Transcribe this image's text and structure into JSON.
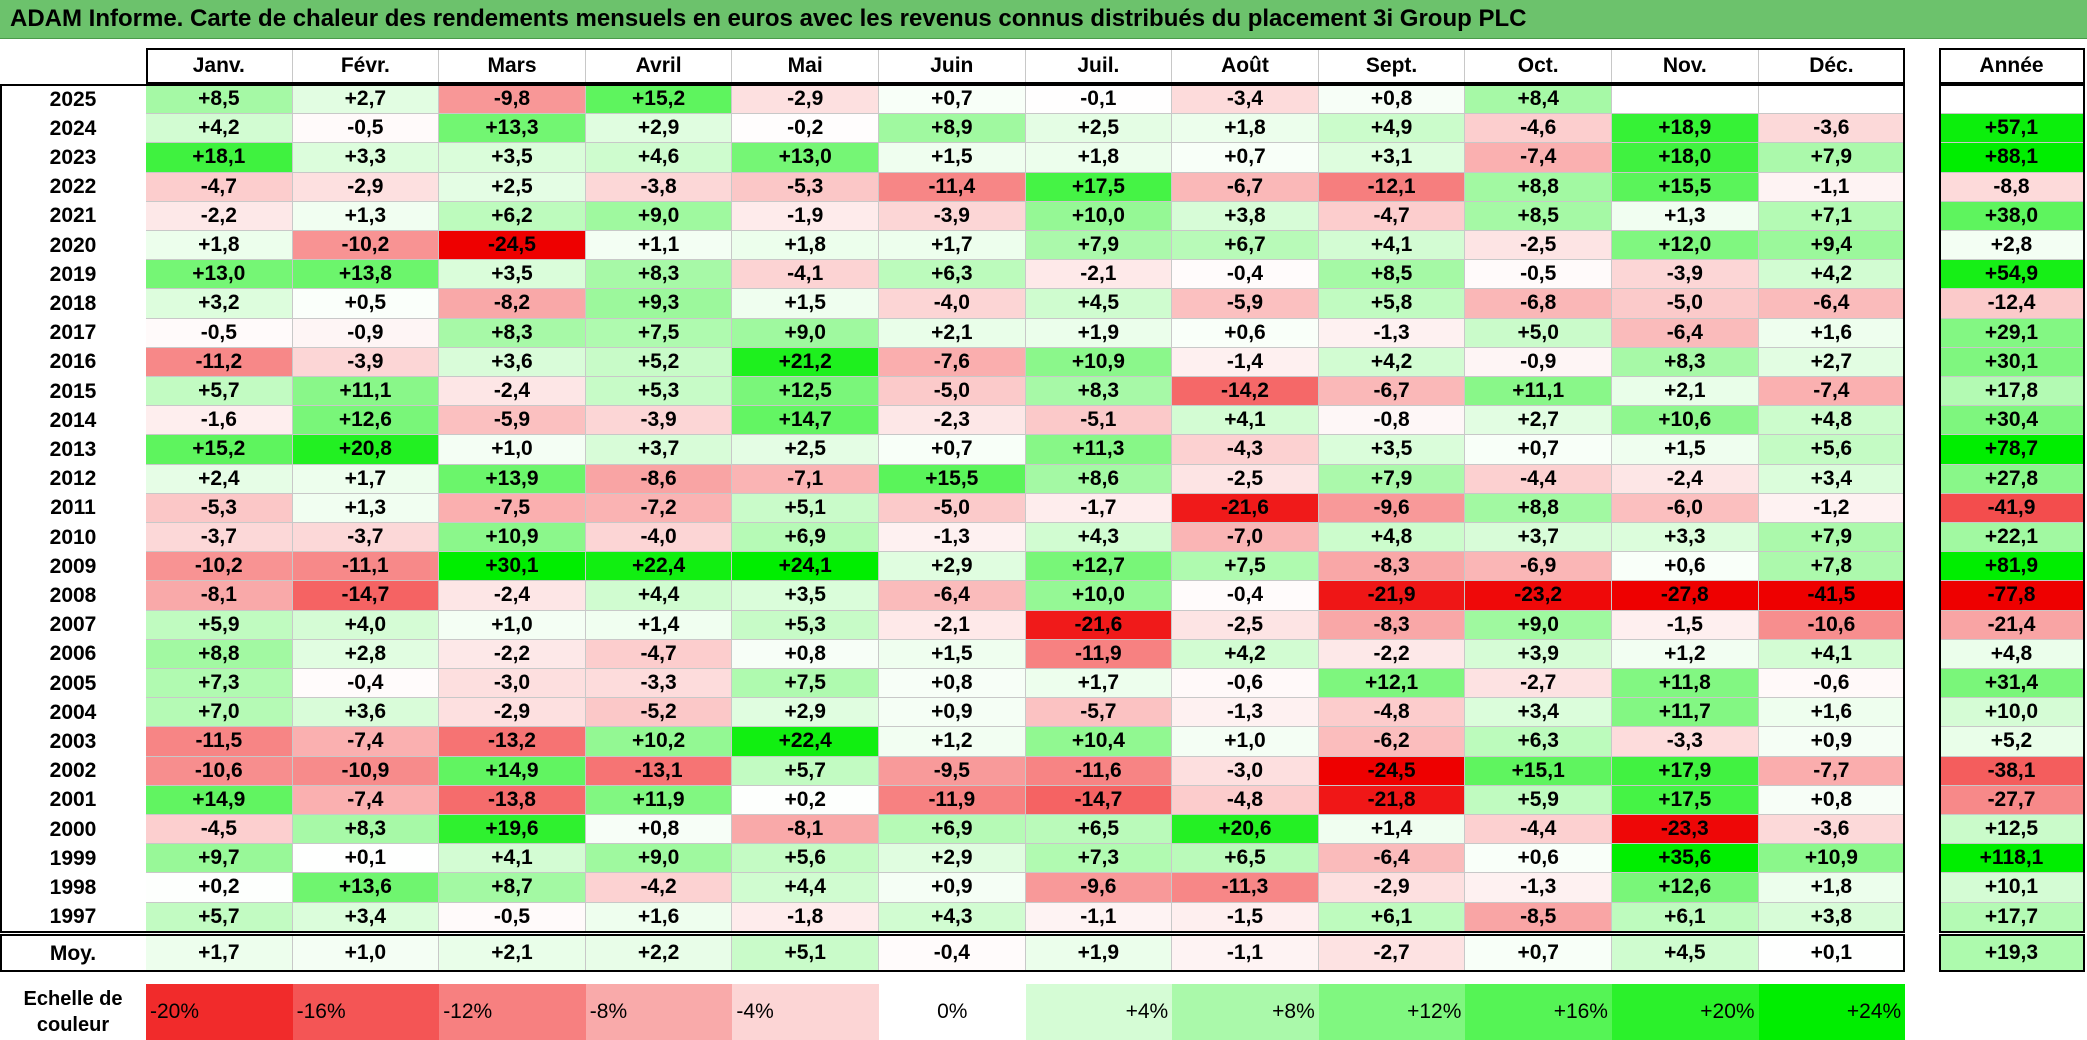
{
  "title": "ADAM Informe. Carte de chaleur des rendements mensuels en euros avec les revenus connus distribués du placement 3i Group PLC",
  "months": [
    "Janv.",
    "Févr.",
    "Mars",
    "Avril",
    "Mai",
    "Juin",
    "Juil.",
    "Août",
    "Sept.",
    "Oct.",
    "Nov.",
    "Déc."
  ],
  "year_header": "Année",
  "avg_label": "Moy.",
  "scale_label": "Echelle de couleur",
  "colors": {
    "title_bg": "#6cc26c",
    "positive_max": "#00ee00",
    "negative_max": "#ee0000",
    "neutral": "#ffffff"
  },
  "chart_data": {
    "type": "heatmap",
    "title": "ADAM Informe. Carte de chaleur des rendements mensuels en euros avec les revenus connus distribués du placement 3i Group PLC",
    "columns": [
      "Janv.",
      "Févr.",
      "Mars",
      "Avril",
      "Mai",
      "Juin",
      "Juil.",
      "Août",
      "Sept.",
      "Oct.",
      "Nov.",
      "Déc."
    ],
    "rows": [
      {
        "year": "2025",
        "values": [
          "+8,5",
          "+2,7",
          "-9,8",
          "+15,2",
          "-2,9",
          "+0,7",
          "-0,1",
          "-3,4",
          "+0,8",
          "+8,4",
          "",
          ""
        ],
        "annual": ""
      },
      {
        "year": "2024",
        "values": [
          "+4,2",
          "-0,5",
          "+13,3",
          "+2,9",
          "-0,2",
          "+8,9",
          "+2,5",
          "+1,8",
          "+4,9",
          "-4,6",
          "+18,9",
          "-3,6"
        ],
        "annual": "+57,1"
      },
      {
        "year": "2023",
        "values": [
          "+18,1",
          "+3,3",
          "+3,5",
          "+4,6",
          "+13,0",
          "+1,5",
          "+1,8",
          "+0,7",
          "+3,1",
          "-7,4",
          "+18,0",
          "+7,9"
        ],
        "annual": "+88,1"
      },
      {
        "year": "2022",
        "values": [
          "-4,7",
          "-2,9",
          "+2,5",
          "-3,8",
          "-5,3",
          "-11,4",
          "+17,5",
          "-6,7",
          "-12,1",
          "+8,8",
          "+15,5",
          "-1,1"
        ],
        "annual": "-8,8"
      },
      {
        "year": "2021",
        "values": [
          "-2,2",
          "+1,3",
          "+6,2",
          "+9,0",
          "-1,9",
          "-3,9",
          "+10,0",
          "+3,8",
          "-4,7",
          "+8,5",
          "+1,3",
          "+7,1"
        ],
        "annual": "+38,0"
      },
      {
        "year": "2020",
        "values": [
          "+1,8",
          "-10,2",
          "-24,5",
          "+1,1",
          "+1,8",
          "+1,7",
          "+7,9",
          "+6,7",
          "+4,1",
          "-2,5",
          "+12,0",
          "+9,4"
        ],
        "annual": "+2,8"
      },
      {
        "year": "2019",
        "values": [
          "+13,0",
          "+13,8",
          "+3,5",
          "+8,3",
          "-4,1",
          "+6,3",
          "-2,1",
          "-0,4",
          "+8,5",
          "-0,5",
          "-3,9",
          "+4,2"
        ],
        "annual": "+54,9"
      },
      {
        "year": "2018",
        "values": [
          "+3,2",
          "+0,5",
          "-8,2",
          "+9,3",
          "+1,5",
          "-4,0",
          "+4,5",
          "-5,9",
          "+5,8",
          "-6,8",
          "-5,0",
          "-6,4"
        ],
        "annual": "-12,4"
      },
      {
        "year": "2017",
        "values": [
          "-0,5",
          "-0,9",
          "+8,3",
          "+7,5",
          "+9,0",
          "+2,1",
          "+1,9",
          "+0,6",
          "-1,3",
          "+5,0",
          "-6,4",
          "+1,6"
        ],
        "annual": "+29,1"
      },
      {
        "year": "2016",
        "values": [
          "-11,2",
          "-3,9",
          "+3,6",
          "+5,2",
          "+21,2",
          "-7,6",
          "+10,9",
          "-1,4",
          "+4,2",
          "-0,9",
          "+8,3",
          "+2,7"
        ],
        "annual": "+30,1"
      },
      {
        "year": "2015",
        "values": [
          "+5,7",
          "+11,1",
          "-2,4",
          "+5,3",
          "+12,5",
          "-5,0",
          "+8,3",
          "-14,2",
          "-6,7",
          "+11,1",
          "+2,1",
          "-7,4"
        ],
        "annual": "+17,8"
      },
      {
        "year": "2014",
        "values": [
          "-1,6",
          "+12,6",
          "-5,9",
          "-3,9",
          "+14,7",
          "-2,3",
          "-5,1",
          "+4,1",
          "-0,8",
          "+2,7",
          "+10,6",
          "+4,8"
        ],
        "annual": "+30,4"
      },
      {
        "year": "2013",
        "values": [
          "+15,2",
          "+20,8",
          "+1,0",
          "+3,7",
          "+2,5",
          "+0,7",
          "+11,3",
          "-4,3",
          "+3,5",
          "+0,7",
          "+1,5",
          "+5,6"
        ],
        "annual": "+78,7"
      },
      {
        "year": "2012",
        "values": [
          "+2,4",
          "+1,7",
          "+13,9",
          "-8,6",
          "-7,1",
          "+15,5",
          "+8,6",
          "-2,5",
          "+7,9",
          "-4,4",
          "-2,4",
          "+3,4"
        ],
        "annual": "+27,8"
      },
      {
        "year": "2011",
        "values": [
          "-5,3",
          "+1,3",
          "-7,5",
          "-7,2",
          "+5,1",
          "-5,0",
          "-1,7",
          "-21,6",
          "-9,6",
          "+8,8",
          "-6,0",
          "-1,2"
        ],
        "annual": "-41,9"
      },
      {
        "year": "2010",
        "values": [
          "-3,7",
          "-3,7",
          "+10,9",
          "-4,0",
          "+6,9",
          "-1,3",
          "+4,3",
          "-7,0",
          "+4,8",
          "+3,7",
          "+3,3",
          "+7,9"
        ],
        "annual": "+22,1"
      },
      {
        "year": "2009",
        "values": [
          "-10,2",
          "-11,1",
          "+30,1",
          "+22,4",
          "+24,1",
          "+2,9",
          "+12,7",
          "+7,5",
          "-8,3",
          "-6,9",
          "+0,6",
          "+7,8"
        ],
        "annual": "+81,9"
      },
      {
        "year": "2008",
        "values": [
          "-8,1",
          "-14,7",
          "-2,4",
          "+4,4",
          "+3,5",
          "-6,4",
          "+10,0",
          "-0,4",
          "-21,9",
          "-23,2",
          "-27,8",
          "-41,5"
        ],
        "annual": "-77,8"
      },
      {
        "year": "2007",
        "values": [
          "+5,9",
          "+4,0",
          "+1,0",
          "+1,4",
          "+5,3",
          "-2,1",
          "-21,6",
          "-2,5",
          "-8,3",
          "+9,0",
          "-1,5",
          "-10,6"
        ],
        "annual": "-21,4"
      },
      {
        "year": "2006",
        "values": [
          "+8,8",
          "+2,8",
          "-2,2",
          "-4,7",
          "+0,8",
          "+1,5",
          "-11,9",
          "+4,2",
          "-2,2",
          "+3,9",
          "+1,2",
          "+4,1"
        ],
        "annual": "+4,8"
      },
      {
        "year": "2005",
        "values": [
          "+7,3",
          "-0,4",
          "-3,0",
          "-3,3",
          "+7,5",
          "+0,8",
          "+1,7",
          "-0,6",
          "+12,1",
          "-2,7",
          "+11,8",
          "-0,6"
        ],
        "annual": "+31,4"
      },
      {
        "year": "2004",
        "values": [
          "+7,0",
          "+3,6",
          "-2,9",
          "-5,2",
          "+2,9",
          "+0,9",
          "-5,7",
          "-1,3",
          "-4,8",
          "+3,4",
          "+11,7",
          "+1,6"
        ],
        "annual": "+10,0"
      },
      {
        "year": "2003",
        "values": [
          "-11,5",
          "-7,4",
          "-13,2",
          "+10,2",
          "+22,4",
          "+1,2",
          "+10,4",
          "+1,0",
          "-6,2",
          "+6,3",
          "-3,3",
          "+0,9"
        ],
        "annual": "+5,2"
      },
      {
        "year": "2002",
        "values": [
          "-10,6",
          "-10,9",
          "+14,9",
          "-13,1",
          "+5,7",
          "-9,5",
          "-11,6",
          "-3,0",
          "-24,5",
          "+15,1",
          "+17,9",
          "-7,7"
        ],
        "annual": "-38,1"
      },
      {
        "year": "2001",
        "values": [
          "+14,9",
          "-7,4",
          "-13,8",
          "+11,9",
          "+0,2",
          "-11,9",
          "-14,7",
          "-4,8",
          "-21,8",
          "+5,9",
          "+17,5",
          "+0,8"
        ],
        "annual": "-27,7"
      },
      {
        "year": "2000",
        "values": [
          "-4,5",
          "+8,3",
          "+19,6",
          "+0,8",
          "-8,1",
          "+6,9",
          "+6,5",
          "+20,6",
          "+1,4",
          "-4,4",
          "-23,3",
          "-3,6"
        ],
        "annual": "+12,5"
      },
      {
        "year": "1999",
        "values": [
          "+9,7",
          "+0,1",
          "+4,1",
          "+9,0",
          "+5,6",
          "+2,9",
          "+7,3",
          "+6,5",
          "-6,4",
          "+0,6",
          "+35,6",
          "+10,9"
        ],
        "annual": "+118,1"
      },
      {
        "year": "1998",
        "values": [
          "+0,2",
          "+13,6",
          "+8,7",
          "-4,2",
          "+4,4",
          "+0,9",
          "-9,6",
          "-11,3",
          "-2,9",
          "-1,3",
          "+12,6",
          "+1,8"
        ],
        "annual": "+10,1"
      },
      {
        "year": "1997",
        "values": [
          "+5,7",
          "+3,4",
          "-0,5",
          "+1,6",
          "-1,8",
          "+4,3",
          "-1,1",
          "-1,5",
          "+6,1",
          "-8,5",
          "+6,1",
          "+3,8"
        ],
        "annual": "+17,7"
      }
    ],
    "average": {
      "values": [
        "+1,7",
        "+1,0",
        "+2,1",
        "+2,2",
        "+5,1",
        "-0,4",
        "+1,9",
        "-1,1",
        "-2,7",
        "+0,7",
        "+4,5",
        "+0,1"
      ],
      "annual": "+19,3"
    },
    "color_scale": [
      "-20%",
      "-16%",
      "-12%",
      "-8%",
      "-4%",
      "0%",
      "+4%",
      "+8%",
      "+12%",
      "+16%",
      "+20%",
      "+24%"
    ]
  }
}
